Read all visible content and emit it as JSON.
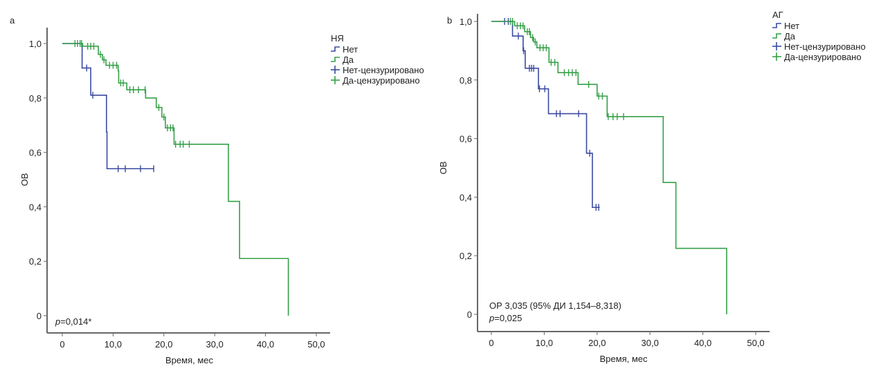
{
  "colors": {
    "no": "#3a4aa0",
    "yes": "#35a048",
    "axis": "#666"
  },
  "chart_data": [
    {
      "type": "line",
      "panel_label": "a",
      "legend_title": "НЯ",
      "xlabel": "Время, мес",
      "ylabel": "ОВ",
      "xlim": [
        0,
        50
      ],
      "ylim": [
        0,
        1
      ],
      "xticks": [
        "0",
        "10,0",
        "20,0",
        "30,0",
        "40,0",
        "50,0"
      ],
      "yticks": [
        "0",
        "0,2",
        "0,4",
        "0,6",
        "0,8",
        "1,0"
      ],
      "legend": [
        "Нет",
        "Да",
        "Нет-цензурировано",
        "Да-цензурировано"
      ],
      "annotation": {
        "p_label": "p",
        "p_value": "=0,014*"
      },
      "series": [
        {
          "name": "Нет",
          "steps": [
            [
              0,
              1
            ],
            [
              3.9,
              0.91
            ],
            [
              5.6,
              0.81
            ],
            [
              8.7,
              0.675
            ],
            [
              8.8,
              0.54
            ]
          ],
          "end": 18.0,
          "censored": [
            [
              4.8,
              0.91
            ],
            [
              6.0,
              0.81
            ],
            [
              11.0,
              0.54
            ],
            [
              12.4,
              0.54
            ],
            [
              15.4,
              0.54
            ],
            [
              18.0,
              0.54
            ]
          ]
        },
        {
          "name": "Да",
          "steps": [
            [
              0,
              1
            ],
            [
              4.0,
              0.99
            ],
            [
              7.1,
              0.96
            ],
            [
              7.9,
              0.94
            ],
            [
              8.6,
              0.92
            ],
            [
              11.0,
              0.9
            ],
            [
              11.1,
              0.855
            ],
            [
              12.7,
              0.83
            ],
            [
              16.4,
              0.8
            ],
            [
              18.5,
              0.765
            ],
            [
              19.6,
              0.73
            ],
            [
              20.3,
              0.69
            ],
            [
              22.0,
              0.63
            ],
            [
              32.7,
              0.42
            ],
            [
              34.9,
              0.21
            ],
            [
              44.5,
              0.0
            ]
          ],
          "end": 44.5,
          "censored": [
            [
              2.5,
              1
            ],
            [
              3.0,
              1
            ],
            [
              3.5,
              1
            ],
            [
              3.8,
              1
            ],
            [
              5.0,
              0.99
            ],
            [
              5.6,
              0.99
            ],
            [
              6.2,
              0.99
            ],
            [
              7.5,
              0.96
            ],
            [
              8.2,
              0.94
            ],
            [
              9.3,
              0.92
            ],
            [
              10.0,
              0.92
            ],
            [
              10.7,
              0.92
            ],
            [
              11.5,
              0.855
            ],
            [
              12.0,
              0.855
            ],
            [
              13.3,
              0.83
            ],
            [
              14.0,
              0.83
            ],
            [
              15.0,
              0.83
            ],
            [
              16.3,
              0.83
            ],
            [
              19.0,
              0.765
            ],
            [
              20.0,
              0.73
            ],
            [
              20.7,
              0.69
            ],
            [
              21.3,
              0.69
            ],
            [
              21.8,
              0.69
            ],
            [
              22.3,
              0.63
            ],
            [
              23.2,
              0.63
            ],
            [
              23.8,
              0.63
            ],
            [
              25.0,
              0.63
            ]
          ]
        }
      ]
    },
    {
      "type": "line",
      "panel_label": "b",
      "legend_title": "АГ",
      "xlabel": "Время, мес",
      "ylabel": "ОВ",
      "xlim": [
        0,
        50
      ],
      "ylim": [
        0,
        1
      ],
      "xticks": [
        "0",
        "10,0",
        "20,0",
        "30,0",
        "40,0",
        "50,0"
      ],
      "yticks": [
        "0",
        "0,2",
        "0,4",
        "0,6",
        "0,8",
        "1,0"
      ],
      "legend": [
        "Нет",
        "Да",
        "Нет-цензурировано",
        "Да-цензурировано"
      ],
      "annotation": {
        "hr": "ОР 3,035 (95% ДИ 1,154–8,318)",
        "p_label": "p",
        "p_value": "=0,025"
      },
      "series": [
        {
          "name": "Нет",
          "steps": [
            [
              0,
              1
            ],
            [
              4.0,
              0.95
            ],
            [
              6.0,
              0.9
            ],
            [
              6.4,
              0.84
            ],
            [
              8.9,
              0.77
            ],
            [
              10.8,
              0.685
            ],
            [
              18.0,
              0.55
            ],
            [
              19.1,
              0.365
            ]
          ],
          "end": 20.5,
          "censored": [
            [
              2.5,
              1
            ],
            [
              3.2,
              1
            ],
            [
              5.1,
              0.95
            ],
            [
              6.1,
              0.9
            ],
            [
              7.2,
              0.84
            ],
            [
              7.6,
              0.84
            ],
            [
              8.0,
              0.84
            ],
            [
              9.1,
              0.77
            ],
            [
              10.1,
              0.77
            ],
            [
              12.3,
              0.685
            ],
            [
              13.0,
              0.685
            ],
            [
              16.5,
              0.685
            ],
            [
              18.6,
              0.55
            ],
            [
              19.8,
              0.365
            ],
            [
              20.3,
              0.365
            ]
          ]
        },
        {
          "name": "Да",
          "steps": [
            [
              0,
              1
            ],
            [
              4.4,
              0.985
            ],
            [
              6.3,
              0.965
            ],
            [
              7.4,
              0.945
            ],
            [
              8.0,
              0.93
            ],
            [
              8.6,
              0.91
            ],
            [
              10.9,
              0.86
            ],
            [
              12.6,
              0.825
            ],
            [
              16.4,
              0.785
            ],
            [
              20.0,
              0.745
            ],
            [
              21.9,
              0.675
            ],
            [
              32.5,
              0.45
            ],
            [
              34.9,
              0.225
            ],
            [
              44.5,
              0
            ]
          ],
          "end": 44.5,
          "censored": [
            [
              3.6,
              1
            ],
            [
              4.0,
              1
            ],
            [
              4.9,
              0.985
            ],
            [
              5.5,
              0.985
            ],
            [
              6.0,
              0.985
            ],
            [
              6.8,
              0.965
            ],
            [
              7.2,
              0.965
            ],
            [
              7.8,
              0.945
            ],
            [
              8.3,
              0.93
            ],
            [
              9.2,
              0.91
            ],
            [
              9.8,
              0.91
            ],
            [
              10.4,
              0.91
            ],
            [
              11.3,
              0.86
            ],
            [
              12.0,
              0.86
            ],
            [
              13.8,
              0.825
            ],
            [
              14.6,
              0.825
            ],
            [
              15.3,
              0.825
            ],
            [
              16.0,
              0.825
            ],
            [
              18.4,
              0.785
            ],
            [
              20.3,
              0.745
            ],
            [
              21.0,
              0.745
            ],
            [
              22.1,
              0.675
            ],
            [
              23.0,
              0.675
            ],
            [
              23.8,
              0.675
            ],
            [
              25.0,
              0.675
            ]
          ]
        }
      ]
    }
  ]
}
